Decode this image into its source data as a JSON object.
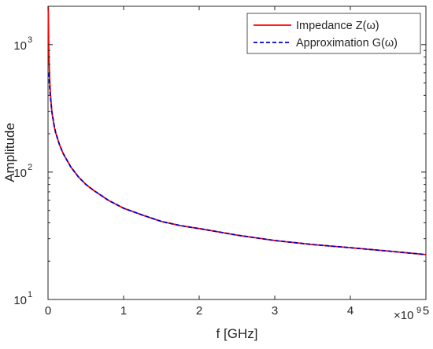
{
  "chart_data": {
    "type": "line",
    "title": "",
    "xlabel": "f [GHz]",
    "ylabel": "Amplitude",
    "x_exponent_label": "×10",
    "x_exponent_power": "9",
    "xlim": [
      0,
      5
    ],
    "ylim": [
      10,
      2000
    ],
    "yscale": "log",
    "grid": false,
    "legend_position": "top-right",
    "x_ticks": [
      0,
      1,
      2,
      3,
      4,
      5
    ],
    "x_tick_labels": [
      "0",
      "1",
      "2",
      "3",
      "4",
      "5"
    ],
    "y_ticks": [
      {
        "value": 10,
        "base": "10",
        "exp": "1"
      },
      {
        "value": 100,
        "base": "10",
        "exp": "2"
      },
      {
        "value": 1000,
        "base": "10",
        "exp": "3"
      }
    ],
    "series": [
      {
        "name": "Impedance Z(ω)",
        "color": "#ff0000",
        "style": "solid",
        "x": [
          0.003,
          0.005,
          0.01,
          0.02,
          0.03,
          0.05,
          0.08,
          0.1,
          0.15,
          0.2,
          0.3,
          0.4,
          0.5,
          0.6,
          0.8,
          1.0,
          1.25,
          1.5,
          1.75,
          2.0,
          2.5,
          3.0,
          3.5,
          4.0,
          4.5,
          5.0
        ],
        "y": [
          2000,
          1500,
          900,
          580,
          420,
          300,
          230,
          205,
          165,
          140,
          110,
          92,
          80,
          72,
          60,
          52,
          46,
          41,
          38,
          36,
          32,
          29,
          27,
          25.5,
          24,
          22.5
        ]
      },
      {
        "name": "Approximation G(ω)",
        "color": "#0000cc",
        "style": "dashed",
        "x": [
          0.01,
          0.02,
          0.03,
          0.05,
          0.08,
          0.1,
          0.15,
          0.2,
          0.3,
          0.4,
          0.5,
          0.6,
          0.8,
          1.0,
          1.25,
          1.5,
          1.75,
          2.0,
          2.5,
          3.0,
          3.5,
          4.0,
          4.5,
          5.0
        ],
        "y": [
          600,
          480,
          400,
          300,
          235,
          205,
          165,
          140,
          110,
          92,
          80,
          72,
          60,
          52,
          46,
          41,
          38,
          36,
          32,
          29,
          27,
          25.5,
          24,
          22.5
        ]
      }
    ]
  }
}
